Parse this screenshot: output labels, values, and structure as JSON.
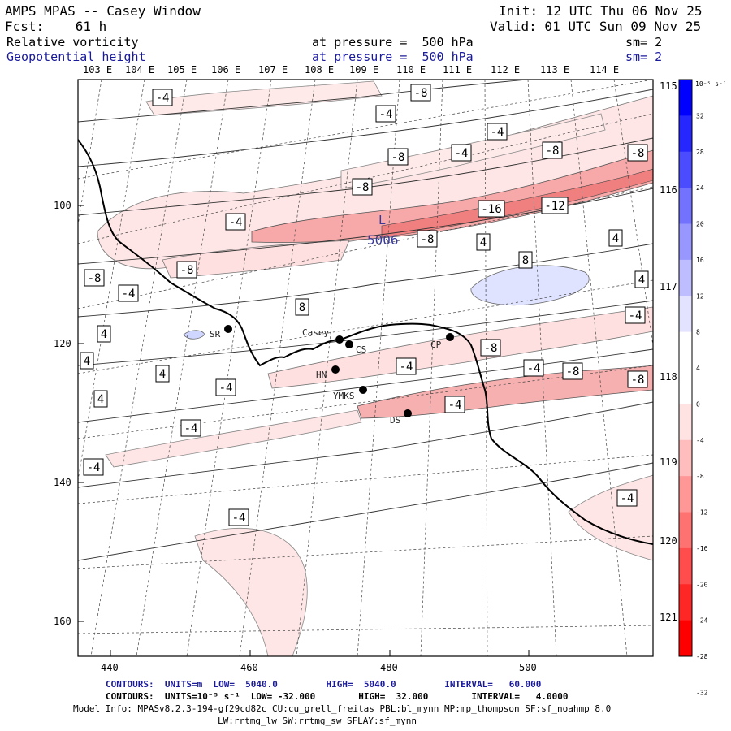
{
  "header": {
    "title": "AMPS MPAS -- Casey Window",
    "fcst": "Fcst:    61 h",
    "init": "Init: 12 UTC Thu 06 Nov 25",
    "valid": "Valid: 01 UTC Sun 09 Nov 25",
    "field1": {
      "name": "Relative vorticity",
      "pressure": "at pressure =  500 hPa",
      "sm": "sm= 2"
    },
    "field2": {
      "name": "Geopotential height",
      "pressure": "at pressure =  500 hPa",
      "sm": "sm= 2"
    }
  },
  "map": {
    "lon_labels": [
      "103 E",
      "104 E",
      "105 E",
      "106 E",
      "107 E",
      "108 E",
      "109 E",
      "110 E",
      "111 E",
      "112 E",
      "113 E",
      "114 E"
    ],
    "lon_right_labels": [
      "115 E",
      "116 E",
      "117 E",
      "118 E",
      "119 E",
      "120 E",
      "121 E"
    ],
    "x_ticks": [
      "440",
      "460",
      "480",
      "500"
    ],
    "y_ticks": [
      "100",
      "120",
      "140",
      "160"
    ],
    "stations": [
      {
        "name": "SR"
      },
      {
        "name": "Casey"
      },
      {
        "name": "CS"
      },
      {
        "name": "HN"
      },
      {
        "name": "YMKS"
      },
      {
        "name": "DS"
      },
      {
        "name": "CP"
      }
    ],
    "low_label": "L",
    "low_value": "5006",
    "contour_labels": [
      "-4",
      "-8",
      "-4",
      "-4",
      "-8",
      "-4",
      "-8",
      "-8",
      "-8",
      "-16",
      "-12",
      "-4",
      "-8",
      "-8",
      "4",
      "8",
      "4",
      "4",
      "-8",
      "-4",
      "8",
      "4",
      "4",
      "4",
      "4",
      "-4",
      "-8",
      "-4",
      "-8",
      "-8",
      "-4",
      "-4",
      "-4",
      "-4",
      "-4",
      "-4",
      "-4"
    ]
  },
  "colorbar": {
    "unit": "10⁻⁵ s⁻¹",
    "labels": [
      "32",
      "28",
      "24",
      "20",
      "16",
      "12",
      "8",
      "4",
      "0",
      "-4",
      "-8",
      "-12",
      "-16",
      "-20",
      "-24",
      "-28",
      "-32"
    ],
    "colors": [
      "#0000ff",
      "#2626ff",
      "#4c4cff",
      "#7272ff",
      "#9797ff",
      "#bdbdff",
      "#e3e3ff",
      "#ffffff",
      "#ffffff",
      "#ffe3e3",
      "#ffbdbd",
      "#ff9797",
      "#ff7272",
      "#ff4c4c",
      "#ff2626",
      "#ff0000"
    ]
  },
  "footer": {
    "line1_prefix": "CONTOURS:",
    "line1": "CONTOURS:  UNITS=m  LOW=  5040.0         HIGH=  5040.0         INTERVAL=   60.000",
    "line2": "CONTOURS:  UNITS=10⁻⁵ s⁻¹  LOW= -32.000        HIGH=  32.000        INTERVAL=   4.0000",
    "model_info": "Model Info: MPASv8.2.3-194-gf29cd82c CU:cu_grell_freitas PBL:bl_mynn MP:mp_thompson SF:sf_noahmp 8.0",
    "model_info2": "LW:rrtmg_lw SW:rrtmg_sw SFLAY:sf_mynn"
  }
}
